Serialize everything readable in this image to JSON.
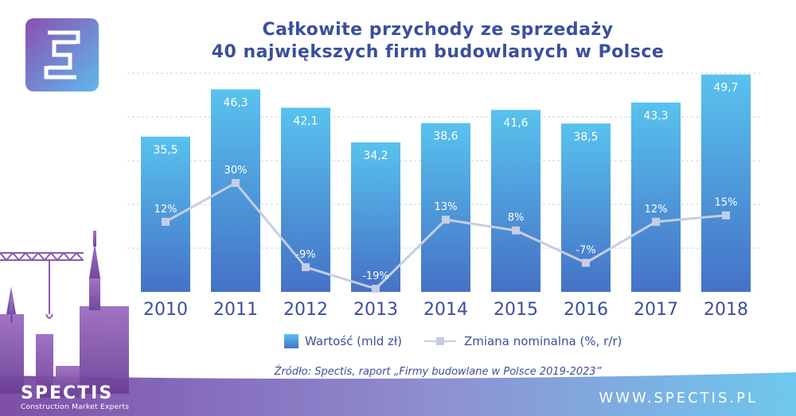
{
  "title_lines": [
    "Całkowite przychody ze sprzedaży",
    "40 największych firm budowlanych w Polsce"
  ],
  "legend": {
    "bar": "Wartość (mld zł)",
    "line": "Zmiana nominalna (%, r/r)"
  },
  "source": "Źródło: Spectis, raport „Firmy budowlane w Polsce 2019-2023”",
  "brand": {
    "name": "SPECTIS",
    "tagline": "Construction Market Experts"
  },
  "website": "WWW.SPECTIS.PL",
  "colors": {
    "title": "#3a4f9e",
    "bar_top": "#58c2ee",
    "bar_bottom": "#4571c6",
    "line": "#c6cde3",
    "accent_purple": "#8a5ab0"
  },
  "chart_data": {
    "type": "bar",
    "categories": [
      "2010",
      "2011",
      "2012",
      "2013",
      "2014",
      "2015",
      "2016",
      "2017",
      "2018"
    ],
    "series": [
      {
        "name": "Wartość (mld zł)",
        "type": "bar",
        "values": [
          35.5,
          46.3,
          42.1,
          34.2,
          38.6,
          41.6,
          38.5,
          43.3,
          49.7
        ],
        "labels": [
          "35,5",
          "46,3",
          "42,1",
          "34,2",
          "38,6",
          "41,6",
          "38,5",
          "43,3",
          "49,7"
        ]
      },
      {
        "name": "Zmiana nominalna (%, r/r)",
        "type": "line",
        "values": [
          12,
          30,
          -9,
          -19,
          13,
          8,
          -7,
          12,
          15
        ],
        "labels": [
          "12%",
          "30%",
          "-9%",
          "-19%",
          "13%",
          "8%",
          "-7%",
          "12%",
          "15%"
        ]
      }
    ],
    "ylim": [
      0,
      50
    ],
    "grid": true,
    "legend_position": "bottom"
  }
}
